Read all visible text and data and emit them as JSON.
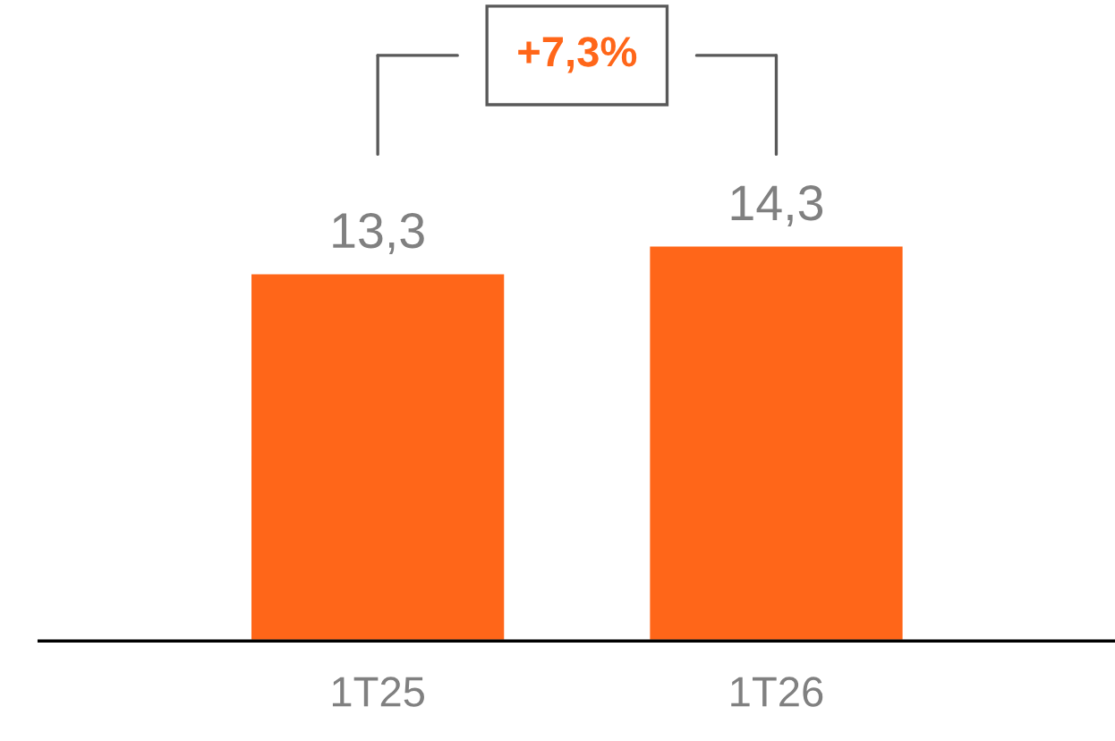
{
  "chart_data": {
    "type": "bar",
    "categories": [
      "1T25",
      "1T26"
    ],
    "values": [
      13.3,
      14.3
    ],
    "value_labels": [
      "13,3",
      "14,3"
    ],
    "color": "#ff6619",
    "annotations": [
      "+7,3%"
    ],
    "grid": false,
    "legend": false
  }
}
